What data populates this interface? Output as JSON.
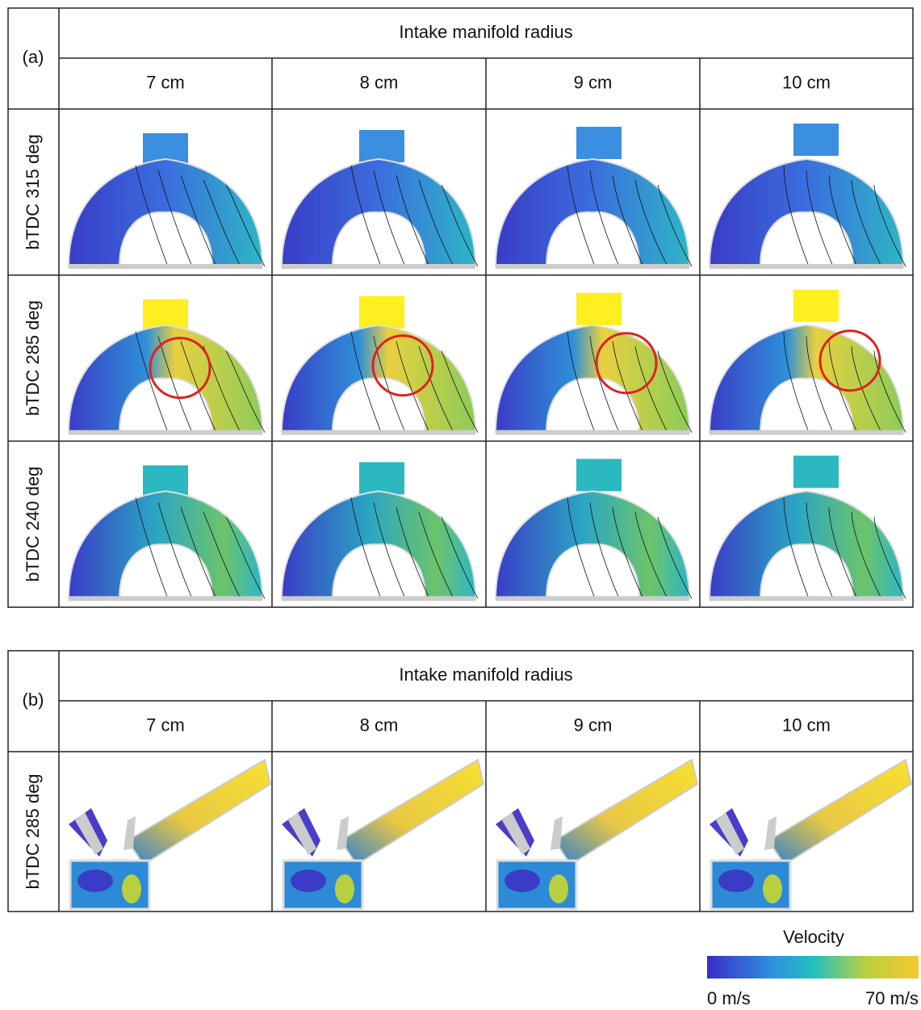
{
  "panel_a": {
    "label": "(a)",
    "header": "Intake manifold radius",
    "columns": [
      "7 cm",
      "8 cm",
      "9 cm",
      "10 cm"
    ],
    "rows": [
      "bTDC 315 deg",
      "bTDC 285 deg",
      "bTDC 240 deg"
    ]
  },
  "panel_b": {
    "label": "(b)",
    "header": "Intake manifold radius",
    "columns": [
      "7 cm",
      "8 cm",
      "9 cm",
      "10 cm"
    ],
    "rows": [
      "bTDC 285 deg"
    ]
  },
  "colorbar": {
    "title": "Velocity",
    "min_label": "0 m/s",
    "max_label": "70 m/s"
  }
}
